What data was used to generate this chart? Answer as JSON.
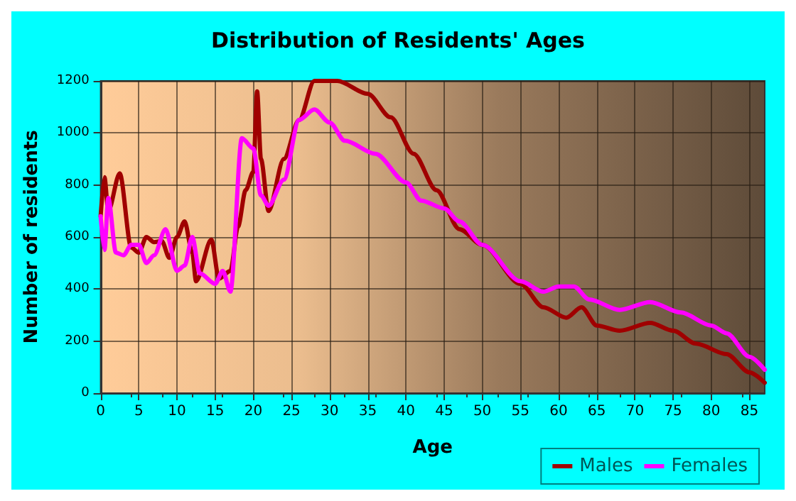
{
  "chart_data": {
    "type": "line",
    "title": "Distribution of Residents' Ages",
    "xlabel": "Age",
    "ylabel": "Number of residents",
    "xlim": [
      0,
      87
    ],
    "xticks": [
      0,
      5,
      10,
      15,
      20,
      25,
      30,
      35,
      40,
      45,
      50,
      55,
      60,
      65,
      70,
      75,
      80,
      85
    ],
    "ylim": [
      0,
      1200
    ],
    "yticks": [
      0,
      200,
      400,
      600,
      800,
      1000,
      1200
    ],
    "grid": true,
    "legend": "bottom right",
    "marker": "none",
    "line_style": "solid",
    "series": [
      {
        "name": "Males",
        "color": "#a00000",
        "x": [
          0,
          0.5,
          1,
          2.5,
          4,
          5,
          6,
          7,
          8,
          9,
          10,
          11,
          12,
          12.5,
          14.5,
          15.5,
          17,
          18,
          19,
          20,
          20.5,
          21,
          22,
          24,
          26,
          28,
          31,
          35,
          38,
          41,
          44,
          47,
          50,
          55,
          58,
          61,
          63,
          65,
          68,
          72,
          75,
          78,
          82,
          85,
          87
        ],
        "values": [
          680,
          830,
          700,
          845,
          560,
          540,
          600,
          580,
          585,
          520,
          600,
          660,
          540,
          430,
          590,
          440,
          470,
          640,
          780,
          850,
          1160,
          900,
          700,
          900,
          1050,
          1200,
          1200,
          1150,
          1060,
          920,
          780,
          630,
          570,
          420,
          330,
          290,
          330,
          260,
          240,
          270,
          240,
          190,
          150,
          80,
          40
        ]
      },
      {
        "name": "Females",
        "color": "#ff00ff",
        "x": [
          0,
          0.5,
          1,
          2,
          3,
          4,
          5,
          6,
          7,
          8.5,
          10,
          11,
          12,
          13,
          15,
          16,
          17,
          18.5,
          20,
          21,
          22,
          24,
          26,
          28,
          30,
          32,
          36,
          40,
          42,
          45,
          47,
          50,
          55,
          58,
          60,
          62,
          64,
          68,
          72,
          76,
          80,
          82,
          85,
          87
        ],
        "values": [
          680,
          550,
          750,
          540,
          530,
          570,
          570,
          500,
          530,
          630,
          470,
          490,
          600,
          460,
          420,
          470,
          390,
          980,
          940,
          760,
          720,
          820,
          1050,
          1090,
          1040,
          970,
          920,
          810,
          740,
          710,
          660,
          570,
          430,
          390,
          410,
          410,
          360,
          320,
          350,
          310,
          260,
          230,
          140,
          90
        ]
      }
    ]
  }
}
